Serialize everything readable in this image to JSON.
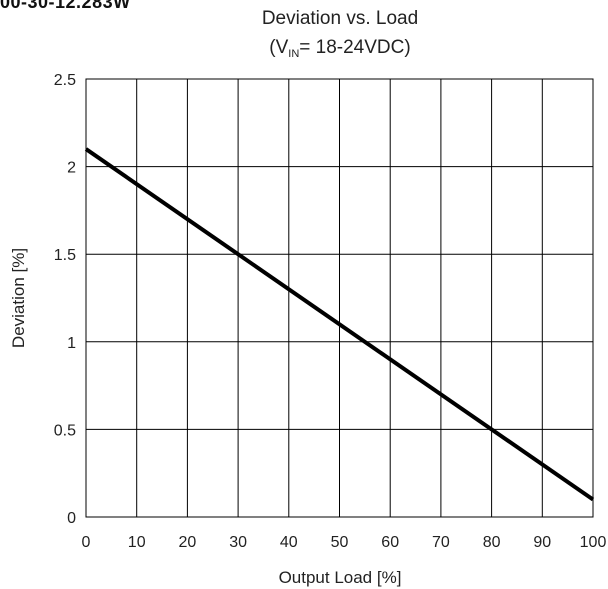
{
  "page": {
    "cut_title": "00-30-12.283W"
  },
  "chart_data": {
    "type": "line",
    "title": "Deviation vs. Load",
    "subtitle": {
      "prefix": "(V",
      "subscript": "IN",
      "suffix": "= 18-24VDC)"
    },
    "xlabel": "Output Load [%]",
    "ylabel": "Deviation [%]",
    "xlim": [
      0,
      100
    ],
    "ylim": [
      0,
      2.5
    ],
    "xticks": [
      0,
      10,
      20,
      30,
      40,
      50,
      60,
      70,
      80,
      90,
      100
    ],
    "xtick_labels": [
      "0",
      "10",
      "20",
      "30",
      "40",
      "50",
      "60",
      "70",
      "80",
      "90",
      "100"
    ],
    "yticks": [
      0,
      0.5,
      1,
      1.5,
      2,
      2.5
    ],
    "ytick_labels": [
      "0",
      "0.5",
      "1",
      "1.5",
      "2",
      "2.5"
    ],
    "grid": true,
    "legend": "none",
    "series": [
      {
        "x": [
          0,
          100
        ],
        "y": [
          2.1,
          0.1
        ],
        "color": "#000000"
      }
    ]
  }
}
